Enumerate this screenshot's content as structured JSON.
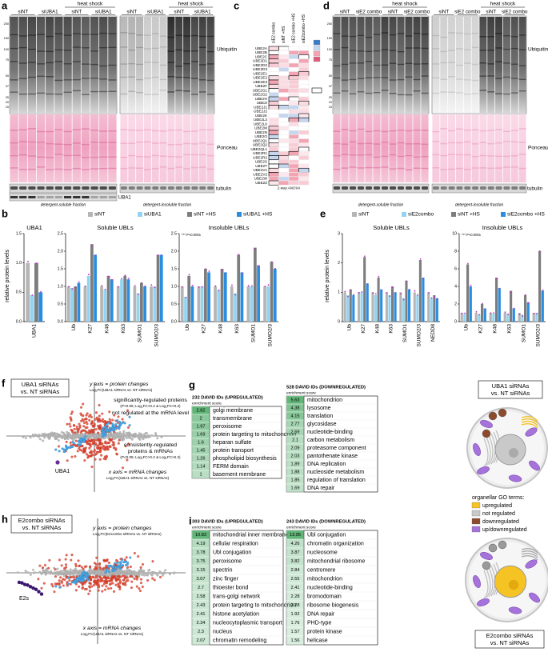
{
  "panel_a": {
    "letter": "a",
    "heat_shock": "heat shock",
    "lanes": [
      "siNT",
      "siUBA1",
      "siNT",
      "siUBA1"
    ],
    "blots": [
      "Ubiquitin",
      "Ponceau",
      "tubulin",
      "UBA1"
    ],
    "fractions": [
      "detergent-soluble fraction",
      "detergent-insoluble fraction"
    ],
    "mw": [
      "250",
      "150",
      "100",
      "75",
      "50",
      "37",
      "25",
      "20",
      "15"
    ]
  },
  "panel_c": {
    "letter": "c",
    "columns": [
      "siE2 combo",
      "siNT +HS",
      "siE2 combo +HS",
      "siE2combo +HS"
    ],
    "genes": [
      "UBE2A",
      "UBE2B",
      "UBE2C",
      "UBE2D1",
      "UBE2D2",
      "UBE2D3",
      "UBE2E1",
      "UBE2E2",
      "UBE2E3",
      "UBE2F",
      "UBE2G1",
      "UBE2G2",
      "UBE2H",
      "UBE2I",
      "UBE2J1",
      "UBE2J2",
      "UBE2K",
      "UBE2L3",
      "UBE2L6",
      "UBE2M",
      "UBE2N",
      "UBE2O",
      "UBE2Q1",
      "UBE2Q2",
      "UBE2QL1",
      "UBE2R1",
      "UBE2R2",
      "UBE2S",
      "UBE2T",
      "UBE2V1",
      "UBE2V2",
      "UBE2W",
      "UBE2Z"
    ],
    "note": "2-way ANOVA"
  },
  "panel_d": {
    "letter": "d",
    "heat_shock": "heat shock",
    "lanes": [
      "siNT",
      "siE2 combo",
      "siNT",
      "siE2 combo"
    ],
    "blots": [
      "Ubiquitin",
      "Ponceau",
      "tubulin"
    ],
    "fractions": [
      "detergent-soluble fraction",
      "detergent-insoluble fraction"
    ],
    "mw": [
      "250",
      "150",
      "100",
      "75",
      "50",
      "37",
      "25",
      "20",
      "15"
    ]
  },
  "panel_b": {
    "letter": "b",
    "y_label": "relative protein levels",
    "series": [
      {
        "name": "siNT",
        "color": "#b5b5b5"
      },
      {
        "name": "siUBA1",
        "color": "#92d4f2"
      },
      {
        "name": "siNT +HS",
        "color": "#7d7d7d"
      },
      {
        "name": "siUBA1 +HS",
        "color": "#2a8ee0"
      }
    ],
    "charts": [
      {
        "title": "UBA1",
        "categories": [
          "UBA1"
        ],
        "values": [
          [
            1
          ],
          [
            0.45
          ],
          [
            1
          ],
          [
            0.5
          ]
        ],
        "ylim": [
          0,
          1.5
        ],
        "yticks": [
          {
            "value": 0,
            "label": "0.0"
          },
          {
            "value": 0.5,
            "label": "0.5"
          },
          {
            "value": 1,
            "label": "1.0"
          },
          {
            "value": 1.5,
            "label": "1.5"
          }
        ]
      },
      {
        "title": "Soluble UBLs",
        "categories": [
          "Ub",
          "K27",
          "K48",
          "K63",
          "SUMO1",
          "SUMO2/3"
        ],
        "values": [
          [
            1,
            1,
            1,
            1,
            1,
            1
          ],
          [
            0.95,
            1.3,
            0.9,
            1.2,
            0.8,
            1.0
          ],
          [
            1.0,
            2.2,
            1.3,
            1.3,
            1.1,
            1.9
          ],
          [
            1.1,
            1.9,
            1.2,
            1.2,
            1.0,
            1.9
          ]
        ],
        "ylim": [
          0,
          2.5
        ],
        "yticks": [
          {
            "value": 0,
            "label": "0.0"
          },
          {
            "value": 0.5,
            "label": "0.5"
          },
          {
            "value": 1,
            "label": "1.0"
          },
          {
            "value": 1.5,
            "label": "1.5"
          },
          {
            "value": 2,
            "label": "2.0"
          },
          {
            "value": 2.5,
            "label": "2.5"
          }
        ]
      },
      {
        "title": "Insoluble UBLs",
        "note": "*** P<0.0001",
        "categories": [
          "Ub",
          "K27",
          "K48",
          "K63",
          "SUMO1",
          "SUMO2/3"
        ],
        "values": [
          [
            1,
            1,
            1,
            1,
            1,
            1
          ],
          [
            0.7,
            1.0,
            0.9,
            0.8,
            1.0,
            1.0
          ],
          [
            1.3,
            1.5,
            1.5,
            1.9,
            2.1,
            1.7
          ],
          [
            1.0,
            1.4,
            1.4,
            1.4,
            1.6,
            1.5
          ]
        ],
        "ylim": [
          0,
          2.5
        ],
        "yticks": [
          {
            "value": 0,
            "label": "0.0"
          },
          {
            "value": 0.5,
            "label": "0.5"
          },
          {
            "value": 1,
            "label": "1.0"
          },
          {
            "value": 1.5,
            "label": "1.5"
          },
          {
            "value": 2,
            "label": "2.0"
          },
          {
            "value": 2.5,
            "label": "2.5"
          }
        ]
      }
    ]
  },
  "panel_e": {
    "letter": "e",
    "y_label": "relative protein levels",
    "series": [
      {
        "name": "siNT",
        "color": "#b5b5b5"
      },
      {
        "name": "siE2combo",
        "color": "#92d4f2"
      },
      {
        "name": "siNT +HS",
        "color": "#7d7d7d"
      },
      {
        "name": "siE2combo +HS",
        "color": "#2a8ee0"
      }
    ],
    "charts": [
      {
        "title": "Soluble UBLs",
        "categories": [
          "Ub",
          "K27",
          "K48",
          "K63",
          "SUMO1",
          "SUMO2/3",
          "NEDD8"
        ],
        "values": [
          [
            1,
            1,
            1,
            1,
            1,
            1,
            1
          ],
          [
            0.9,
            1.0,
            0.9,
            0.9,
            0.8,
            0.9,
            0.8
          ],
          [
            1.1,
            2.2,
            1.5,
            1.2,
            1.4,
            2.1,
            0.9
          ],
          [
            0.9,
            1.3,
            1.1,
            1.0,
            1.1,
            1.5,
            0.8
          ]
        ],
        "ylim": [
          0,
          3
        ],
        "yticks": [
          0,
          1,
          2,
          3
        ]
      },
      {
        "title": "Insoluble UBLs",
        "note": "*** P<0.0001",
        "categories": [
          "Ub",
          "K27",
          "K48",
          "K63",
          "SUMO1",
          "SUMO2/3"
        ],
        "values": [
          [
            1,
            1,
            1,
            1,
            1,
            1
          ],
          [
            0.9,
            0.8,
            0.9,
            0.9,
            0.8,
            1.0
          ],
          [
            6.5,
            2.0,
            5.0,
            3.5,
            3.0,
            8.0
          ],
          [
            4.0,
            1.5,
            3.8,
            1.5,
            2.2,
            3.5
          ]
        ],
        "ylim": [
          0,
          10
        ],
        "yticks": [
          0,
          2,
          4,
          6,
          8,
          10
        ]
      }
    ]
  },
  "panel_f": {
    "letter": "f",
    "box": [
      "UBA1 siRNAs",
      "vs. NT siRNAs"
    ],
    "y_axis": [
      "y axis = protein changes",
      "Log₂FC(UBA1 siRNAs vs. NT siRNAs)"
    ],
    "red_note": [
      "significantly-regulated proteins",
      "(P<0.05; Log₂FC>0.2 & Log₂FC<0.2)",
      "not regulated at the mRNA level"
    ],
    "blue_note": [
      "consistently-regulated",
      "proteins & mRNAs",
      "(P<0.05; Log₂FC>0.2 & Log₂FC>0.2)"
    ],
    "x_axis": [
      "x axis = mRNA changes",
      "Log₂FC(UBA1 siRNAs vs. NT siRNAs)"
    ],
    "highlight": "UBA1"
  },
  "panel_g": {
    "letter": "g",
    "tables": [
      {
        "header": "232 DAVID IDs (UPREGULATED)",
        "subheader": "enrichment score",
        "rows": [
          {
            "score": 2.82,
            "term": "golgi membrane"
          },
          {
            "score": 2,
            "term": "transmembrane"
          },
          {
            "score": 1.97,
            "term": "peroxisome"
          },
          {
            "score": 1.69,
            "term": "protein targeting to mitochondrion"
          },
          {
            "score": 1.6,
            "term": "heparan sulfate"
          },
          {
            "score": 1.45,
            "term": "protein transport"
          },
          {
            "score": 1.26,
            "term": "phospholipid biosynthesis"
          },
          {
            "score": 1.14,
            "term": "FERM domain"
          },
          {
            "score": 1,
            "term": "basement membrane"
          }
        ]
      },
      {
        "header": "528 DAVID IDs (DOWNREGULATED)",
        "subheader": "enrichment score",
        "rows": [
          {
            "score": 5.63,
            "term": "mitochondrion"
          },
          {
            "score": 4.38,
            "term": "lysosome"
          },
          {
            "score": 4.15,
            "term": "translation"
          },
          {
            "score": 2.77,
            "term": "glycosidase"
          },
          {
            "score": 2.69,
            "term": "nucleotide-binding"
          },
          {
            "score": 2.1,
            "term": "carbon metabolism"
          },
          {
            "score": 2.09,
            "term": "proteasome component"
          },
          {
            "score": 2.03,
            "term": "pantothenate kinase"
          },
          {
            "score": 1.89,
            "term": "DNA replication"
          },
          {
            "score": 1.88,
            "term": "nucleoside metabolism"
          },
          {
            "score": 1.85,
            "term": "regulation of translation"
          },
          {
            "score": 1.69,
            "term": "DNA repair"
          }
        ]
      }
    ]
  },
  "panel_h": {
    "letter": "h",
    "box": [
      "E2combo siRNAs",
      "vs. NT siRNAs"
    ],
    "y_axis": [
      "y axis = protein changes",
      "Log₂FC(E2combo siRNAs vs. NT siRNAs)"
    ],
    "x_axis": [
      "x axis = mRNA changes",
      "Log₂FC(UBA1 siRNAs vs. NT siRNAs)"
    ],
    "highlight": "E2s"
  },
  "panel_i": {
    "letter": "i",
    "tables": [
      {
        "header": "303 DAVID IDs (UPREGULATED)",
        "subheader": "enrichment score",
        "rows": [
          {
            "score": 10.83,
            "term": "mitochondrial inner membrane"
          },
          {
            "score": 4.19,
            "term": "cellular respiration"
          },
          {
            "score": 3.78,
            "term": "Ubl conjugation"
          },
          {
            "score": 3.75,
            "term": "peroxisome"
          },
          {
            "score": 3.15,
            "term": "spectrin"
          },
          {
            "score": 3.07,
            "term": "zinc finger"
          },
          {
            "score": 2.7,
            "term": "thioester bond"
          },
          {
            "score": 2.58,
            "term": "trans-golgi network"
          },
          {
            "score": 2.43,
            "term": "protein targeting to mitochondrion"
          },
          {
            "score": 2.41,
            "term": "histone acetylation"
          },
          {
            "score": 2.34,
            "term": "nucleocytoplasmic transport"
          },
          {
            "score": 2.3,
            "term": "nucleus"
          },
          {
            "score": 2.07,
            "term": "chromatin remodeling"
          }
        ]
      },
      {
        "header": "243 DAVID IDs (DOWNREGULATED)",
        "subheader": "enrichment score",
        "rows": [
          {
            "score": 13.95,
            "term": "Ubl conjugation"
          },
          {
            "score": 4.26,
            "term": "chromatin organization"
          },
          {
            "score": 3.87,
            "term": "nucleosome"
          },
          {
            "score": 3.82,
            "term": "mitochondrial ribosome"
          },
          {
            "score": 2.84,
            "term": "centromere"
          },
          {
            "score": 2.55,
            "term": "mitochondrion"
          },
          {
            "score": 2.41,
            "term": "nucleotide-binding"
          },
          {
            "score": 2.28,
            "term": "bromodomain"
          },
          {
            "score": 2.28,
            "term": "ribosome biogenesis"
          },
          {
            "score": 1.92,
            "term": "DNA repair"
          },
          {
            "score": 1.76,
            "term": "PHD-type"
          },
          {
            "score": 1.57,
            "term": "protein kinase"
          },
          {
            "score": 1.56,
            "term": "helicase"
          }
        ]
      }
    ]
  },
  "cells": {
    "top_box": [
      "UBA1 siRNAs",
      "vs. NT siRNAs"
    ],
    "legend_title": "organellar GO terms:",
    "legend": [
      {
        "label": "upregulated",
        "color": "#f5c324"
      },
      {
        "label": "not regulated",
        "color": "#c9c9c9"
      },
      {
        "label": "downregulated",
        "color": "#8c4b2c"
      },
      {
        "label": "up/downregulated",
        "color": "#a673da"
      }
    ],
    "bottom_box": [
      "E2combo siRNAs",
      "vs. NT siRNAs"
    ]
  }
}
